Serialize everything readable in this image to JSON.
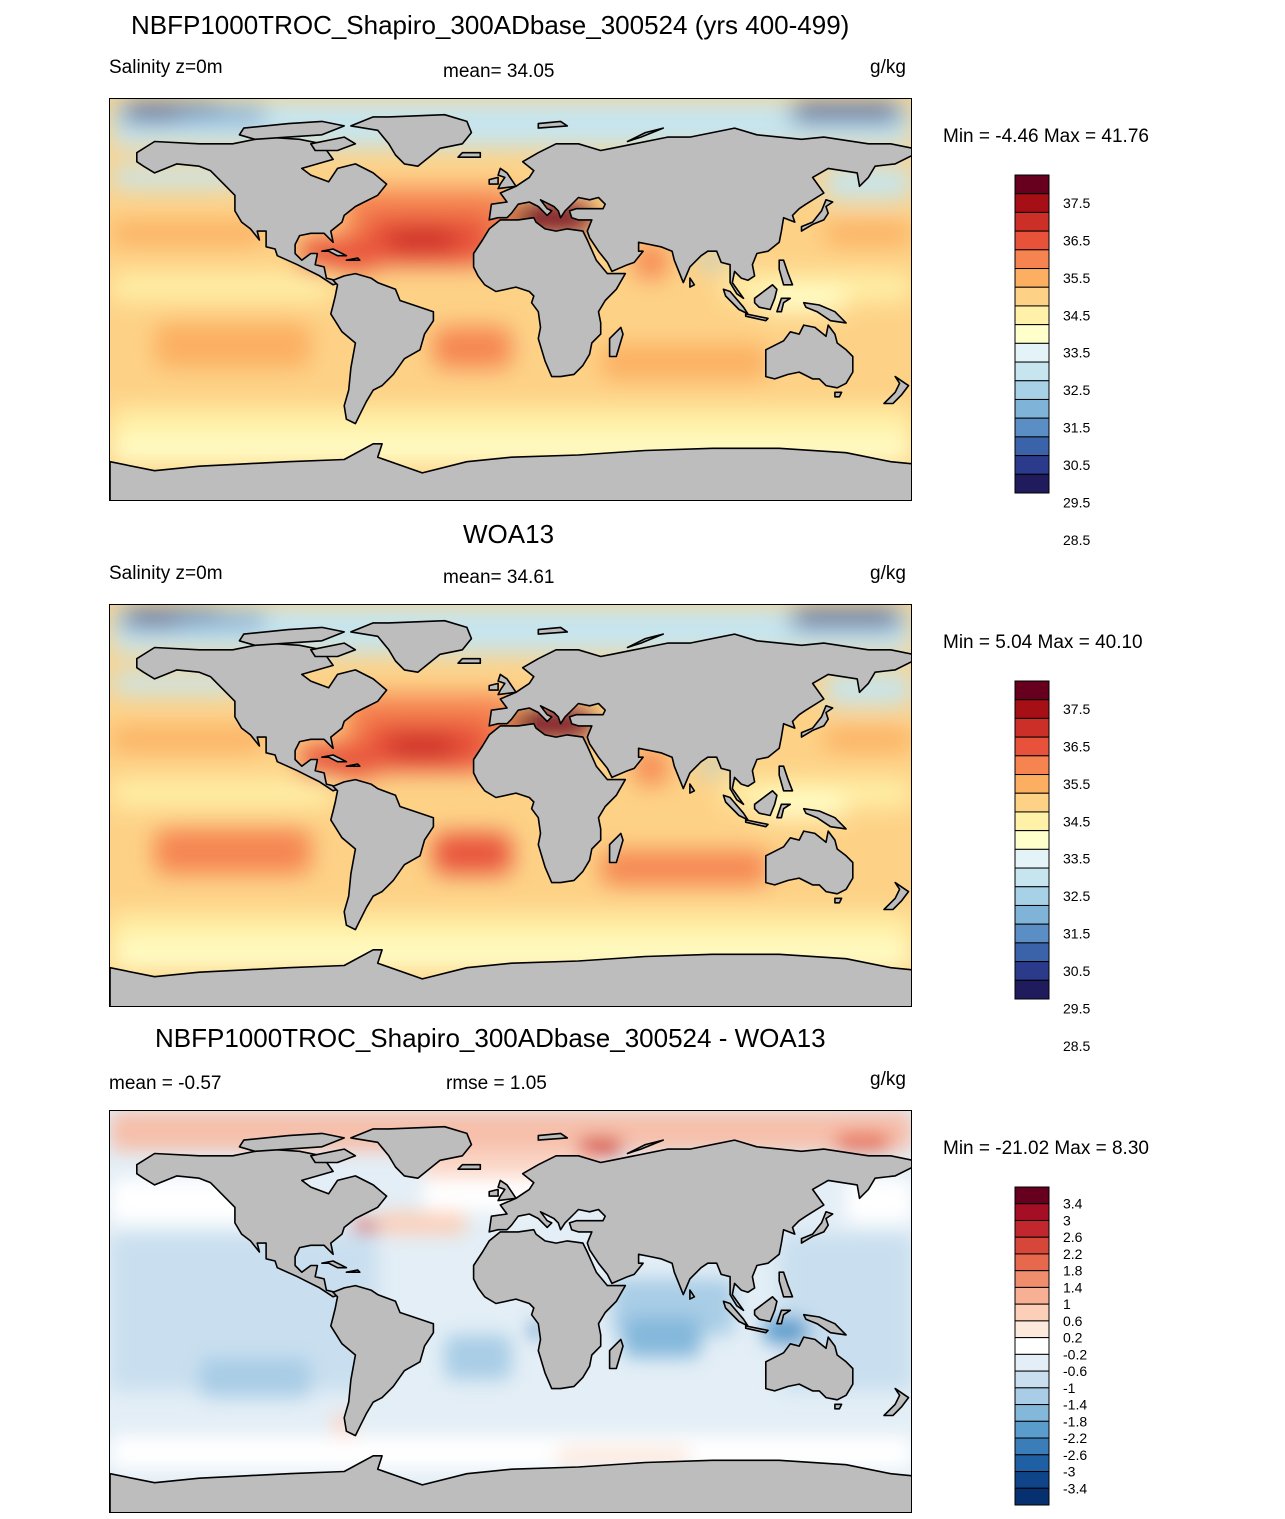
{
  "panels": [
    {
      "title": "NBFP1000TROC_Shapiro_300ADbase_300524 (yrs 400-499)",
      "left_label": "Salinity z=0m",
      "center_label": "mean=  34.05",
      "units": "g/kg",
      "minmax": "Min =  -4.46 Max =  41.76",
      "colorbar_labels": [
        "37.5",
        "36.5",
        "35.5",
        "34.5",
        "33.5",
        "32.5",
        "31.5",
        "30.5",
        "29.5",
        "28.5"
      ],
      "colorbar_colors": [
        "#67001f",
        "#a50f15",
        "#cb2f27",
        "#e8523b",
        "#f58451",
        "#fcae61",
        "#fdd287",
        "#fff1a8",
        "#ffffcc",
        "#e3f3f8",
        "#c6e5ef",
        "#a7d1e6",
        "#7fb3d8",
        "#5b8ec5",
        "#3b63aa",
        "#2c3a8b",
        "#1f1b5c"
      ]
    },
    {
      "title": "WOA13",
      "left_label": "Salinity z=0m",
      "center_label": "mean=  34.61",
      "units": "g/kg",
      "minmax": "Min =   5.04 Max =  40.10",
      "colorbar_labels": [
        "37.5",
        "36.5",
        "35.5",
        "34.5",
        "33.5",
        "32.5",
        "31.5",
        "30.5",
        "29.5",
        "28.5"
      ],
      "colorbar_colors": [
        "#67001f",
        "#a50f15",
        "#cb2f27",
        "#e8523b",
        "#f58451",
        "#fcae61",
        "#fdd287",
        "#fff1a8",
        "#ffffcc",
        "#e3f3f8",
        "#c6e5ef",
        "#a7d1e6",
        "#7fb3d8",
        "#5b8ec5",
        "#3b63aa",
        "#2c3a8b",
        "#1f1b5c"
      ]
    },
    {
      "title": "NBFP1000TROC_Shapiro_300ADbase_300524 - WOA13",
      "left_label": "mean =  -0.57",
      "center_label": "rmse =   1.05",
      "units": "g/kg",
      "minmax": "Min = -21.02 Max =   8.30",
      "colorbar_labels": [
        "3.4",
        "3",
        "2.6",
        "2.2",
        "1.8",
        "1.4",
        "1",
        "0.6",
        "0.2",
        "-0.2",
        "-0.6",
        "-1",
        "-1.4",
        "-1.8",
        "-2.2",
        "-2.6",
        "-3",
        "-3.4"
      ],
      "colorbar_colors": [
        "#67001f",
        "#a50f26",
        "#c1272d",
        "#d6473a",
        "#e7694d",
        "#f08d6d",
        "#f7b093",
        "#fbcfb8",
        "#fde8dc",
        "#ffffff",
        "#e3eef6",
        "#c9dfef",
        "#a9cde6",
        "#84b8db",
        "#5a9ccc",
        "#3a7db9",
        "#1f5fa3",
        "#0f4488",
        "#073070"
      ]
    }
  ],
  "colors": {
    "land": "#bdbdbd",
    "coast": "#000000"
  }
}
